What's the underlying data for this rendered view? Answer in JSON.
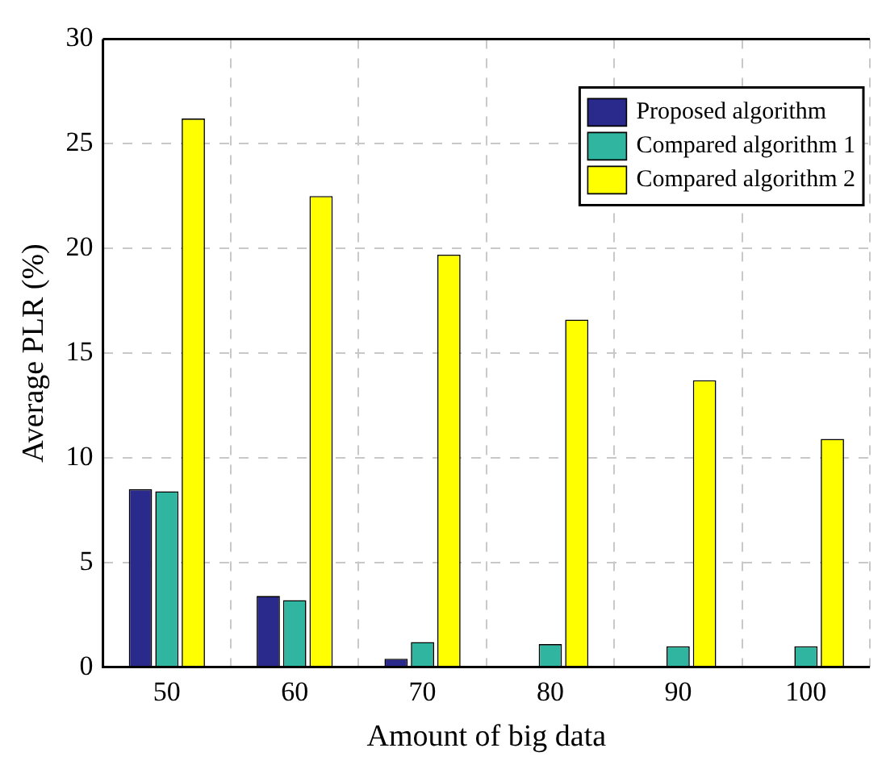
{
  "chart_data": {
    "type": "bar",
    "xlabel": "Amount of big data",
    "ylabel": "Average PLR (%)",
    "categories": [
      "50",
      "60",
      "70",
      "80",
      "90",
      "100"
    ],
    "series": [
      {
        "name": "Proposed algorithm",
        "color": "#2a2a8c",
        "values": [
          8.5,
          3.4,
          0.4,
          0,
          0,
          0
        ]
      },
      {
        "name": "Compared algorithm 1",
        "color": "#2fb5a0",
        "values": [
          8.4,
          3.2,
          1.2,
          1.1,
          1.0,
          1.0
        ]
      },
      {
        "name": "Compared algorithm 2",
        "color": "#ffff00",
        "values": [
          26.2,
          22.5,
          19.7,
          16.6,
          13.7,
          10.9
        ]
      }
    ],
    "ylim": [
      0,
      30
    ],
    "yticks": [
      0,
      5,
      10,
      15,
      20,
      25,
      30
    ],
    "grid": true,
    "legend": "top right"
  }
}
